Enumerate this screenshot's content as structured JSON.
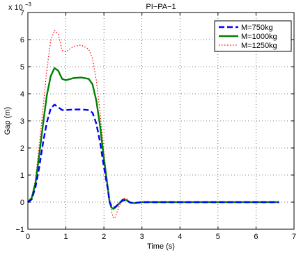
{
  "chart_data": {
    "type": "line",
    "title": "PI−PA−1",
    "xlabel": "Time (s)",
    "ylabel": "Gap (m)",
    "y_exponent_label": "x 10",
    "y_exponent_power": "−3",
    "xlim": [
      0,
      7
    ],
    "ylim": [
      -1,
      7
    ],
    "x_ticks": [
      0,
      1,
      2,
      3,
      4,
      5,
      6,
      7
    ],
    "y_ticks": [
      -1,
      0,
      1,
      2,
      3,
      4,
      5,
      6,
      7
    ],
    "x_tick_labels": [
      "0",
      "1",
      "2",
      "3",
      "4",
      "5",
      "6",
      "7"
    ],
    "y_tick_labels": [
      "−1",
      "0",
      "1",
      "2",
      "3",
      "4",
      "5",
      "6",
      "7"
    ],
    "grid": true,
    "legend_position": "top-right",
    "series": [
      {
        "name": "M=750kg",
        "color": "#0000ff",
        "style": "dashed",
        "x": [
          0,
          0.1,
          0.2,
          0.3,
          0.4,
          0.5,
          0.6,
          0.7,
          0.8,
          0.9,
          1.0,
          1.2,
          1.4,
          1.6,
          1.7,
          1.8,
          1.9,
          2.0,
          2.1,
          2.15,
          2.2,
          2.25,
          2.3,
          2.4,
          2.5,
          2.6,
          2.7,
          2.8,
          3.0,
          4.0,
          5.0,
          6.0,
          6.6
        ],
        "y": [
          0,
          0.1,
          0.55,
          1.3,
          2.2,
          2.95,
          3.45,
          3.6,
          3.5,
          3.4,
          3.4,
          3.42,
          3.42,
          3.4,
          3.3,
          2.9,
          2.2,
          1.3,
          0.5,
          0.0,
          -0.15,
          -0.2,
          -0.18,
          -0.05,
          0.07,
          0.05,
          -0.02,
          -0.03,
          0,
          0,
          0,
          0,
          0
        ]
      },
      {
        "name": "M=1000kg",
        "color": "#008000",
        "style": "solid",
        "x": [
          0,
          0.1,
          0.2,
          0.3,
          0.4,
          0.5,
          0.6,
          0.7,
          0.8,
          0.9,
          1.0,
          1.2,
          1.4,
          1.6,
          1.7,
          1.8,
          1.9,
          2.0,
          2.1,
          2.15,
          2.2,
          2.25,
          2.3,
          2.4,
          2.5,
          2.6,
          2.7,
          2.8,
          3.0,
          4.0,
          5.0,
          6.0,
          6.6
        ],
        "y": [
          0,
          0.15,
          0.7,
          1.75,
          2.9,
          3.95,
          4.65,
          4.95,
          4.85,
          4.55,
          4.5,
          4.58,
          4.6,
          4.55,
          4.35,
          3.75,
          2.8,
          1.6,
          0.55,
          0.0,
          -0.2,
          -0.25,
          -0.2,
          -0.05,
          0.1,
          0.07,
          -0.02,
          -0.04,
          0,
          0,
          0,
          0,
          0
        ]
      },
      {
        "name": "M=1250kg",
        "color": "#ff0000",
        "style": "dotted",
        "x": [
          0,
          0.1,
          0.2,
          0.3,
          0.4,
          0.5,
          0.6,
          0.7,
          0.8,
          0.9,
          1.0,
          1.2,
          1.4,
          1.6,
          1.7,
          1.8,
          1.9,
          2.0,
          2.1,
          2.15,
          2.2,
          2.25,
          2.3,
          2.4,
          2.5,
          2.6,
          2.7,
          2.8,
          3.0,
          4.0,
          5.0,
          6.0,
          6.6
        ],
        "y": [
          0,
          0.2,
          0.85,
          2.1,
          3.5,
          4.9,
          5.95,
          6.35,
          6.2,
          5.6,
          5.55,
          5.75,
          5.8,
          5.65,
          5.3,
          4.5,
          3.3,
          1.85,
          0.6,
          0.0,
          -0.35,
          -0.6,
          -0.55,
          -0.15,
          0.15,
          0.12,
          -0.02,
          -0.05,
          0,
          0,
          0,
          0,
          0
        ]
      }
    ]
  }
}
